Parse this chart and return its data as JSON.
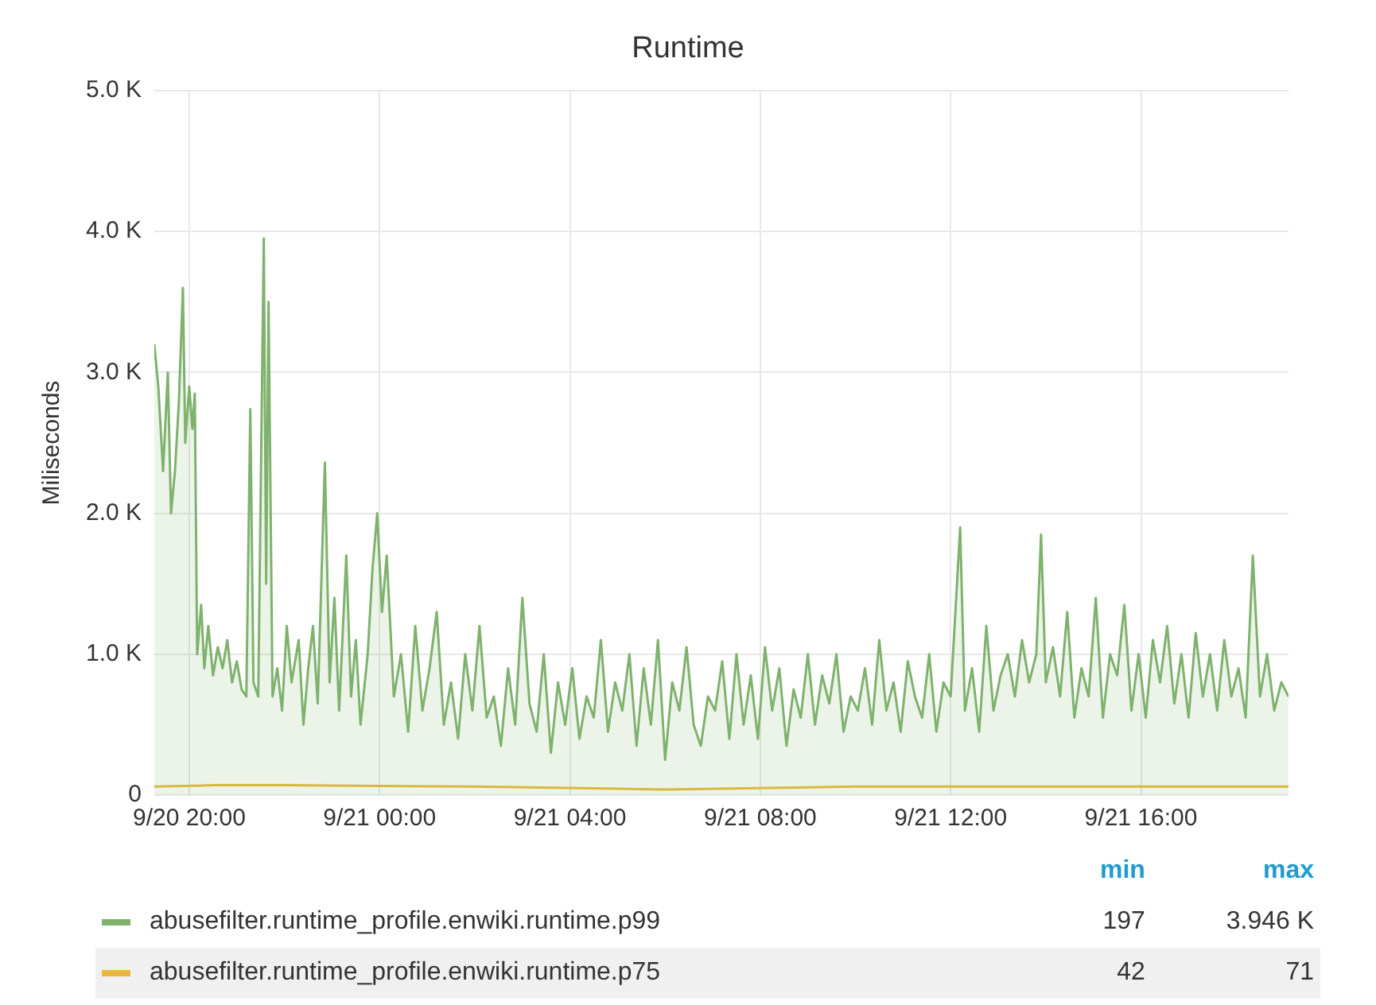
{
  "chart_data": {
    "type": "line",
    "title": "Runtime",
    "ylabel": "Miliseconds",
    "xlim": [
      "--09-20T19:16",
      "--09-21T19:06"
    ],
    "xticks": [
      {
        "value": "--09-20T20:00",
        "label": "9/20 20:00"
      },
      {
        "value": "--09-21T00:00",
        "label": "9/21 00:00"
      },
      {
        "value": "--09-21T04:00",
        "label": "9/21 04:00"
      },
      {
        "value": "--09-21T08:00",
        "label": "9/21 08:00"
      },
      {
        "value": "--09-21T12:00",
        "label": "9/21 12:00"
      },
      {
        "value": "--09-21T16:00",
        "label": "9/21 16:00"
      }
    ],
    "ylim": [
      0,
      5000
    ],
    "yticks": [
      {
        "value": 0,
        "label": "0"
      },
      {
        "value": 1000,
        "label": "1.0 K"
      },
      {
        "value": 2000,
        "label": "2.0 K"
      },
      {
        "value": 3000,
        "label": "3.0 K"
      },
      {
        "value": 4000,
        "label": "4.0 K"
      },
      {
        "value": 5000,
        "label": "5.0 K"
      }
    ],
    "grid": true,
    "legend": "bottom",
    "marker": "none",
    "line_style": "solid",
    "annotations": [
      "min",
      "max",
      "197",
      "3.946 K",
      "42",
      "71"
    ],
    "series": [
      {
        "name": "abusefilter.runtime_profile.enwiki.runtime.p99",
        "type": "area",
        "color": "#7eb26d",
        "x": [
          "--09-20T19:16",
          "--09-20T19:21",
          "--09-20T19:27",
          "--09-20T19:33",
          "--09-20T19:37",
          "--09-20T19:42",
          "--09-20T19:47",
          "--09-20T19:52",
          "--09-20T19:55",
          "--09-20T20:00",
          "--09-20T20:04",
          "--09-20T20:07",
          "--09-20T20:10",
          "--09-20T20:15",
          "--09-20T20:19",
          "--09-20T20:24",
          "--09-20T20:30",
          "--09-20T20:36",
          "--09-20T20:42",
          "--09-20T20:48",
          "--09-20T20:54",
          "--09-20T21:00",
          "--09-20T21:06",
          "--09-20T21:12",
          "--09-20T21:17",
          "--09-20T21:21",
          "--09-20T21:27",
          "--09-20T21:34",
          "--09-20T21:37",
          "--09-20T21:40",
          "--09-20T21:45",
          "--09-20T21:51",
          "--09-20T21:57",
          "--09-20T22:03",
          "--09-20T22:09",
          "--09-20T22:18",
          "--09-20T22:24",
          "--09-20T22:30",
          "--09-20T22:36",
          "--09-20T22:42",
          "--09-20T22:51",
          "--09-20T22:57",
          "--09-20T23:03",
          "--09-20T23:09",
          "--09-20T23:18",
          "--09-20T23:24",
          "--09-20T23:30",
          "--09-20T23:36",
          "--09-20T23:45",
          "--09-20T23:51",
          "--09-20T23:57",
          "--09-21T00:03",
          "--09-21T00:09",
          "--09-21T00:18",
          "--09-21T00:27",
          "--09-21T00:36",
          "--09-21T00:45",
          "--09-21T00:54",
          "--09-21T01:03",
          "--09-21T01:12",
          "--09-21T01:21",
          "--09-21T01:30",
          "--09-21T01:39",
          "--09-21T01:48",
          "--09-21T01:57",
          "--09-21T02:06",
          "--09-21T02:15",
          "--09-21T02:24",
          "--09-21T02:33",
          "--09-21T02:42",
          "--09-21T02:51",
          "--09-21T03:00",
          "--09-21T03:09",
          "--09-21T03:18",
          "--09-21T03:27",
          "--09-21T03:36",
          "--09-21T03:45",
          "--09-21T03:54",
          "--09-21T04:03",
          "--09-21T04:12",
          "--09-21T04:21",
          "--09-21T04:30",
          "--09-21T04:39",
          "--09-21T04:48",
          "--09-21T04:57",
          "--09-21T05:06",
          "--09-21T05:15",
          "--09-21T05:24",
          "--09-21T05:33",
          "--09-21T05:42",
          "--09-21T05:51",
          "--09-21T06:00",
          "--09-21T06:09",
          "--09-21T06:18",
          "--09-21T06:27",
          "--09-21T06:36",
          "--09-21T06:45",
          "--09-21T06:54",
          "--09-21T07:03",
          "--09-21T07:12",
          "--09-21T07:21",
          "--09-21T07:30",
          "--09-21T07:39",
          "--09-21T07:48",
          "--09-21T07:57",
          "--09-21T08:06",
          "--09-21T08:15",
          "--09-21T08:24",
          "--09-21T08:33",
          "--09-21T08:42",
          "--09-21T08:51",
          "--09-21T09:00",
          "--09-21T09:09",
          "--09-21T09:18",
          "--09-21T09:27",
          "--09-21T09:36",
          "--09-21T09:45",
          "--09-21T09:54",
          "--09-21T10:03",
          "--09-21T10:12",
          "--09-21T10:21",
          "--09-21T10:30",
          "--09-21T10:39",
          "--09-21T10:48",
          "--09-21T10:57",
          "--09-21T11:06",
          "--09-21T11:15",
          "--09-21T11:24",
          "--09-21T11:33",
          "--09-21T11:42",
          "--09-21T11:51",
          "--09-21T12:00",
          "--09-21T12:12",
          "--09-21T12:18",
          "--09-21T12:27",
          "--09-21T12:36",
          "--09-21T12:45",
          "--09-21T12:54",
          "--09-21T13:03",
          "--09-21T13:12",
          "--09-21T13:21",
          "--09-21T13:30",
          "--09-21T13:39",
          "--09-21T13:48",
          "--09-21T13:54",
          "--09-21T14:00",
          "--09-21T14:09",
          "--09-21T14:18",
          "--09-21T14:27",
          "--09-21T14:36",
          "--09-21T14:45",
          "--09-21T14:54",
          "--09-21T15:03",
          "--09-21T15:12",
          "--09-21T15:21",
          "--09-21T15:30",
          "--09-21T15:39",
          "--09-21T15:48",
          "--09-21T15:57",
          "--09-21T16:06",
          "--09-21T16:15",
          "--09-21T16:24",
          "--09-21T16:33",
          "--09-21T16:42",
          "--09-21T16:51",
          "--09-21T17:00",
          "--09-21T17:09",
          "--09-21T17:18",
          "--09-21T17:27",
          "--09-21T17:36",
          "--09-21T17:45",
          "--09-21T17:54",
          "--09-21T18:03",
          "--09-21T18:12",
          "--09-21T18:21",
          "--09-21T18:30",
          "--09-21T18:39",
          "--09-21T18:48",
          "--09-21T18:57",
          "--09-21T19:06"
        ],
        "values": [
          3200,
          2900,
          2300,
          3000,
          2000,
          2300,
          2800,
          3600,
          2500,
          2900,
          2600,
          2850,
          1000,
          1350,
          900,
          1200,
          850,
          1050,
          900,
          1100,
          800,
          950,
          750,
          700,
          2740,
          800,
          700,
          3950,
          1500,
          3500,
          700,
          900,
          600,
          1200,
          800,
          1100,
          500,
          900,
          1200,
          650,
          2360,
          800,
          1400,
          600,
          1700,
          700,
          1100,
          500,
          1000,
          1600,
          2000,
          1300,
          1700,
          700,
          1000,
          450,
          1200,
          600,
          900,
          1300,
          500,
          800,
          400,
          1000,
          600,
          1200,
          550,
          700,
          350,
          900,
          500,
          1400,
          650,
          450,
          1000,
          300,
          800,
          500,
          900,
          400,
          700,
          550,
          1100,
          450,
          800,
          600,
          1000,
          350,
          900,
          500,
          1100,
          250,
          800,
          600,
          1050,
          500,
          350,
          700,
          600,
          950,
          400,
          1000,
          500,
          850,
          400,
          1050,
          600,
          900,
          350,
          750,
          550,
          1000,
          500,
          850,
          650,
          1000,
          450,
          700,
          600,
          900,
          500,
          1100,
          600,
          800,
          450,
          950,
          700,
          550,
          1000,
          450,
          800,
          700,
          1900,
          600,
          900,
          450,
          1200,
          600,
          850,
          1000,
          700,
          1100,
          800,
          1000,
          1850,
          800,
          1050,
          700,
          1300,
          550,
          900,
          700,
          1400,
          550,
          1000,
          850,
          1350,
          600,
          1000,
          550,
          1100,
          800,
          1200,
          650,
          1000,
          550,
          1150,
          700,
          1000,
          600,
          1100,
          700,
          900,
          550,
          1700,
          700,
          1000,
          600,
          800,
          700
        ]
      },
      {
        "name": "abusefilter.runtime_profile.enwiki.runtime.p75",
        "type": "line",
        "color": "#eab839",
        "x": [
          "--09-20T19:16",
          "--09-20T20:30",
          "--09-20T22:00",
          "--09-21T02:00",
          "--09-21T06:00",
          "--09-21T10:00",
          "--09-21T14:00",
          "--09-21T19:06"
        ],
        "values": [
          60,
          70,
          70,
          60,
          40,
          60,
          60,
          60
        ]
      }
    ]
  }
}
